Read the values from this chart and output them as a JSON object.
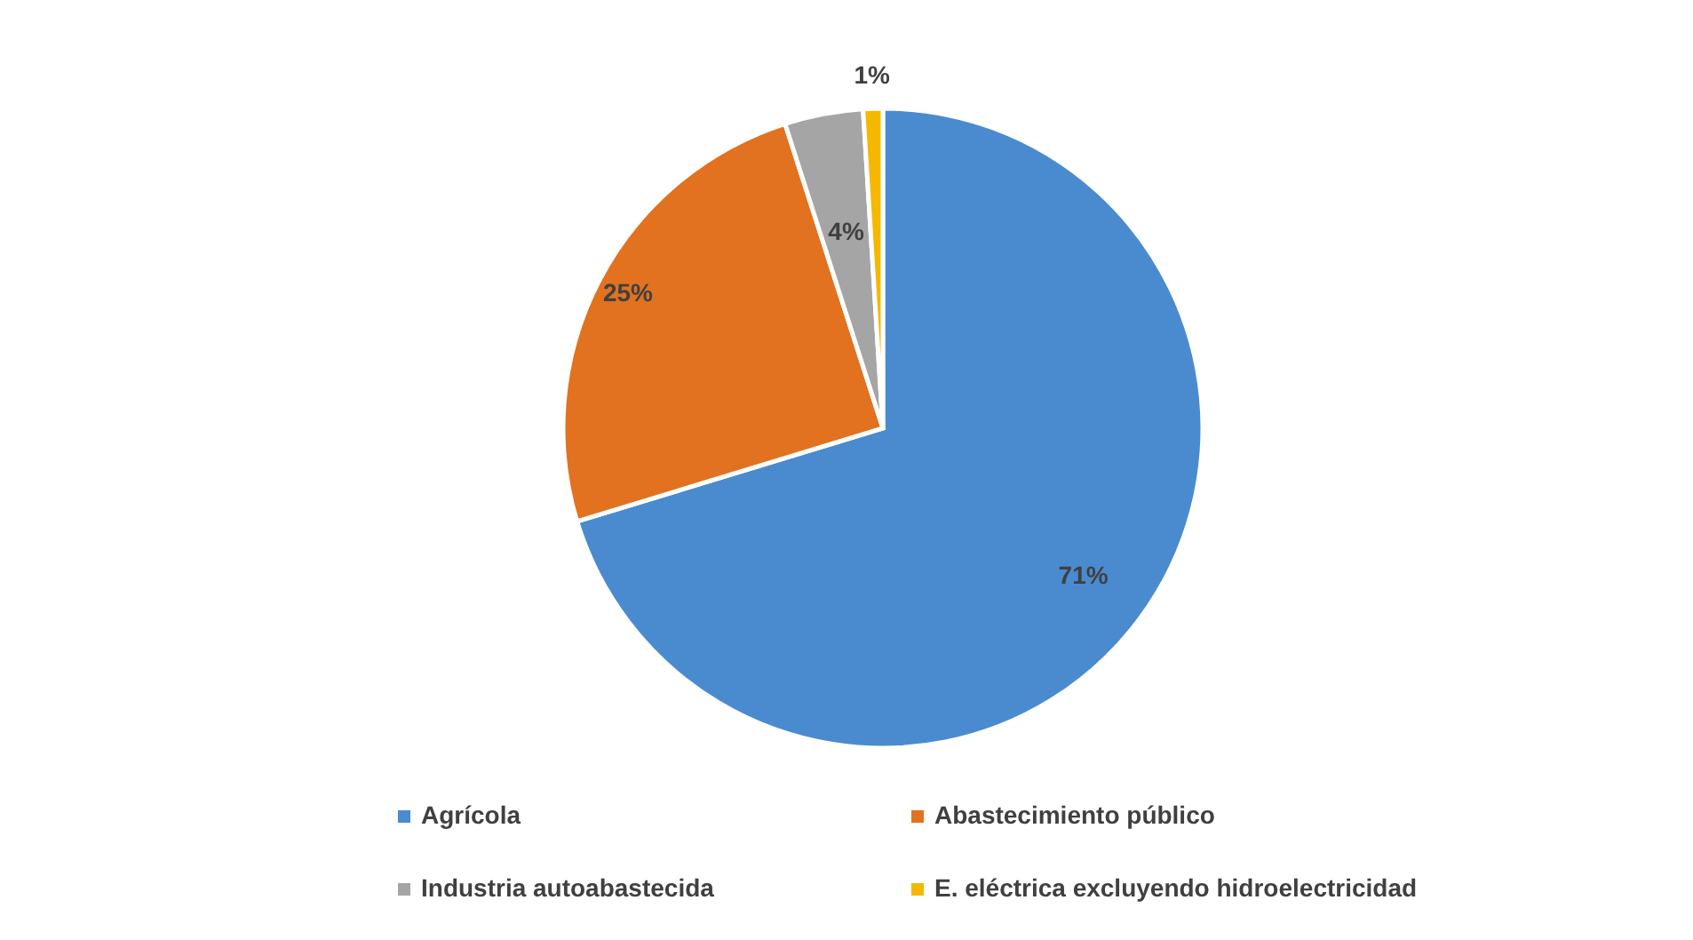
{
  "chart_data": {
    "type": "pie",
    "categories": [
      "Agrícola",
      "Abastecimiento público",
      "Industria autoabastecida",
      "E. eléctrica excluyendo hidroelectricidad"
    ],
    "values": [
      71,
      25,
      4,
      1
    ],
    "value_labels": [
      "71%",
      "25%",
      "4%",
      "1%"
    ],
    "colors": [
      "#4a8bd0",
      "#e2721f",
      "#a5a5a5",
      "#f5b800"
    ],
    "legend": "bottom"
  }
}
